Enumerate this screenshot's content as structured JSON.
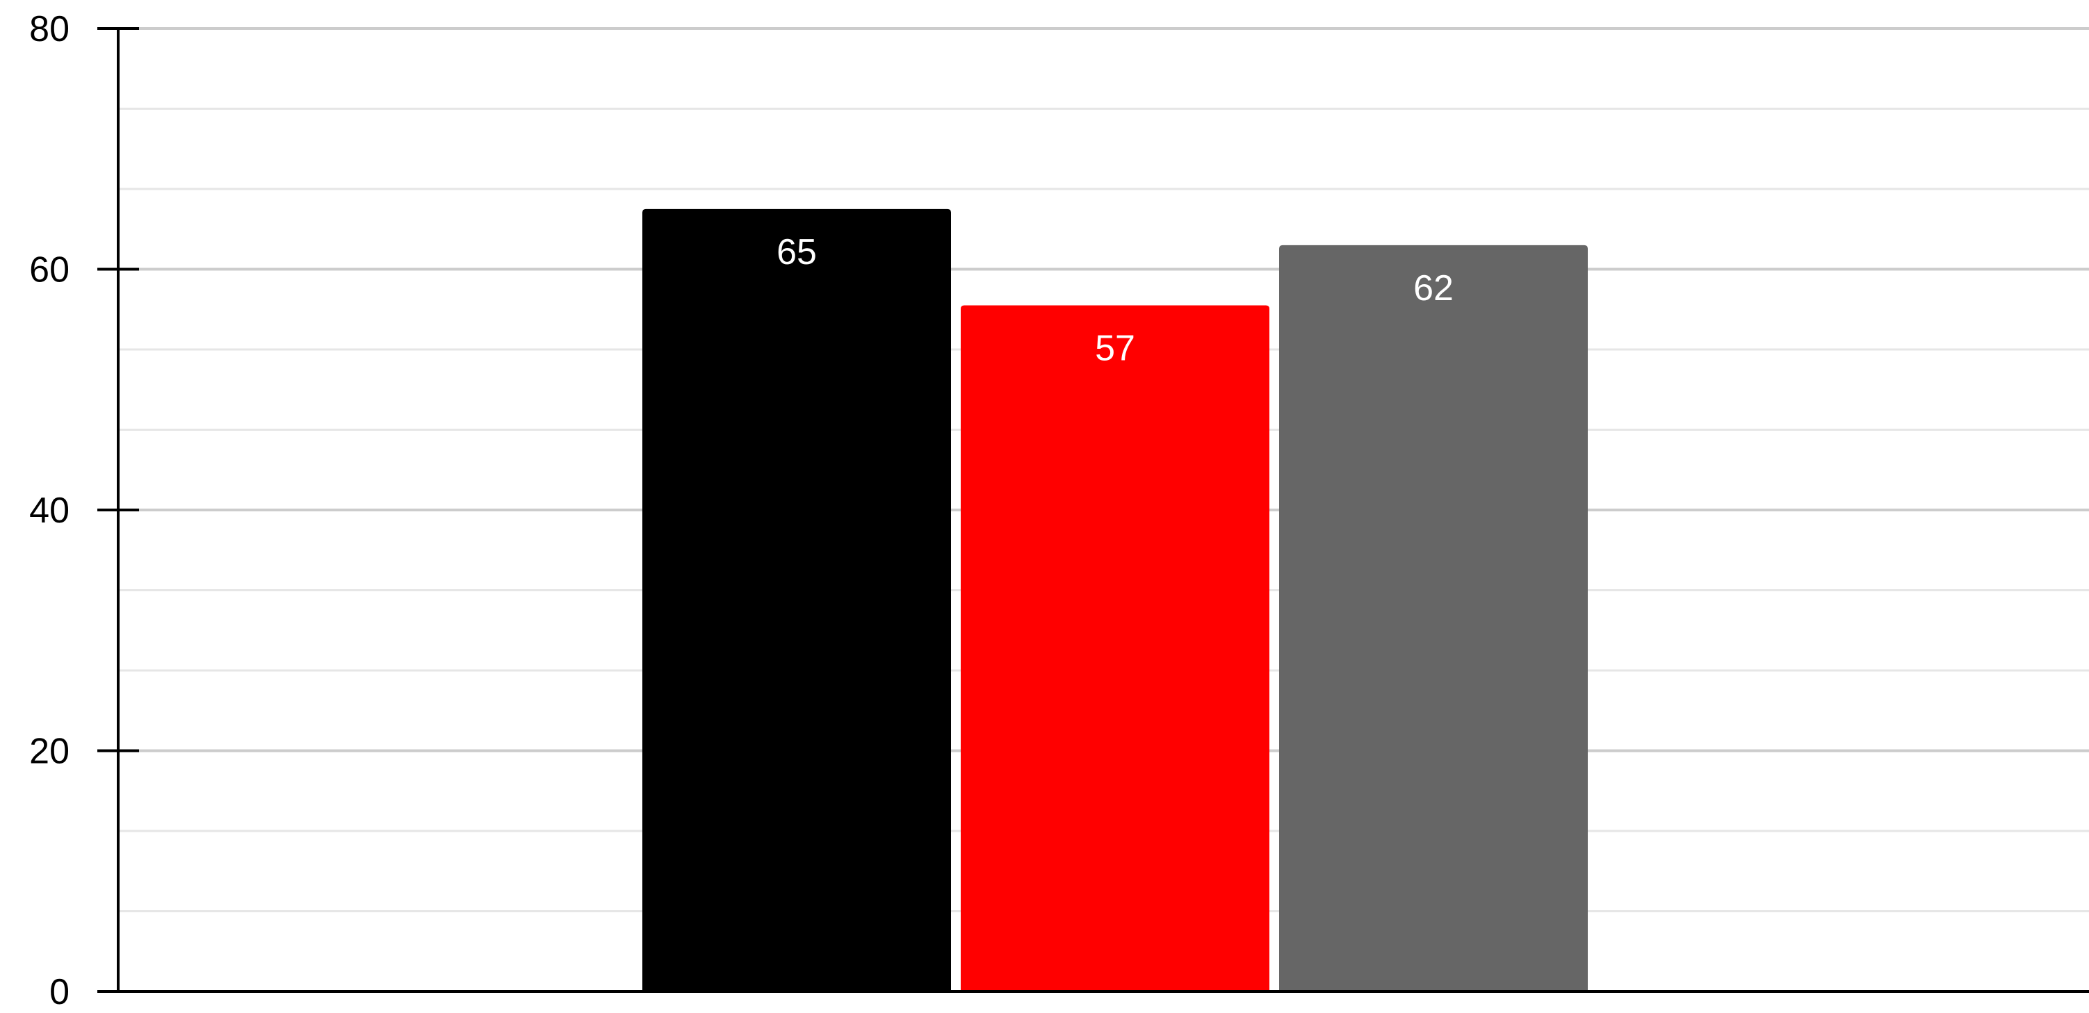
{
  "chart_data": {
    "type": "bar",
    "title": "",
    "xlabel": "",
    "ylabel": "",
    "ylim": [
      0,
      80
    ],
    "yticks": [
      0,
      20,
      40,
      60,
      80
    ],
    "minor_grid_step": 6.666667,
    "grid": true,
    "legend": "none",
    "series": [
      {
        "value": 65,
        "color": "#000000",
        "label": "65"
      },
      {
        "value": 57,
        "color": "#ff0000",
        "label": "57"
      },
      {
        "value": 62,
        "color": "#666666",
        "label": "62"
      }
    ],
    "colors": {
      "axis": "#000000",
      "major_grid": "#cccccc",
      "minor_grid": "#e6e6e6",
      "data_label": "#ffffff",
      "tick_label": "#000000"
    }
  }
}
